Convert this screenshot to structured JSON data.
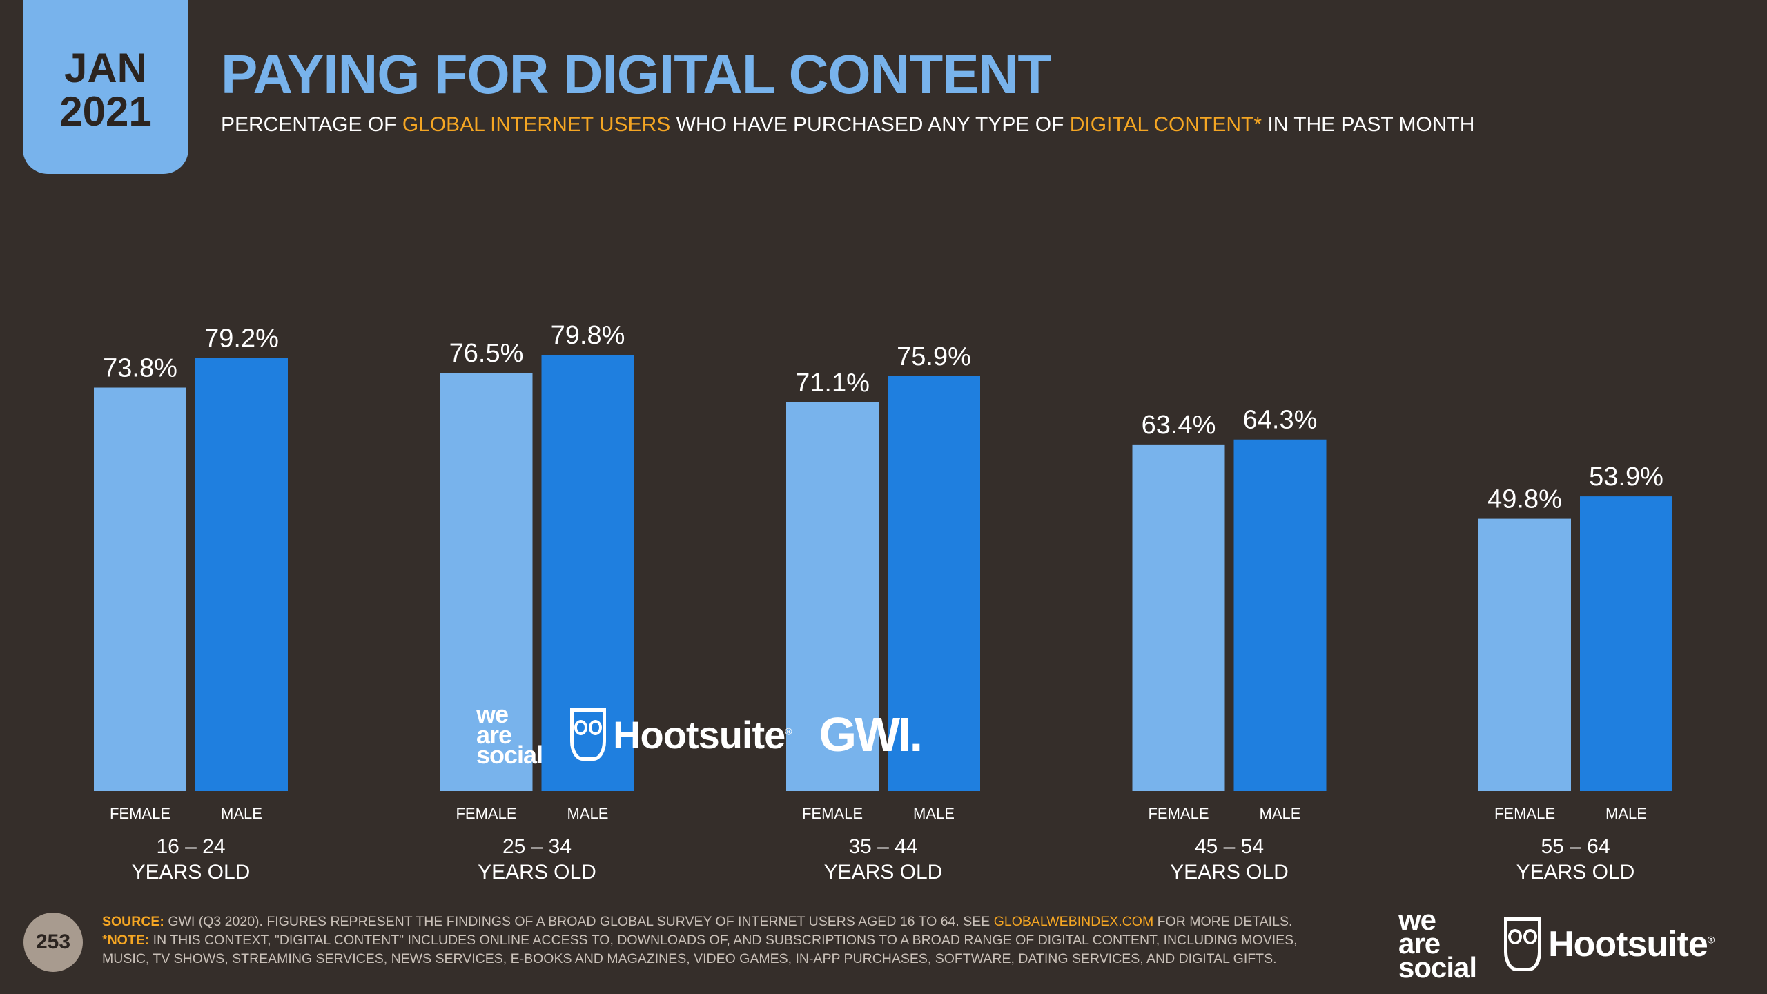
{
  "header": {
    "date_month": "JAN",
    "date_year": "2021",
    "title": "PAYING FOR DIGITAL CONTENT",
    "subtitle_parts": [
      "PERCENTAGE OF ",
      "GLOBAL INTERNET USERS",
      " WHO HAVE PURCHASED ANY TYPE OF ",
      "DIGITAL CONTENT*",
      " IN THE PAST MONTH"
    ]
  },
  "colors": {
    "background": "#352e2a",
    "female": "#78b3ec",
    "male": "#1f7fdf",
    "accent": "#f5a623",
    "title": "#78b3ec"
  },
  "chart_data": {
    "type": "bar",
    "categories": [
      "16 – 24\nYEARS OLD",
      "25 – 34\nYEARS OLD",
      "35 – 44\nYEARS OLD",
      "45 – 54\nYEARS OLD",
      "55 – 64\nYEARS OLD"
    ],
    "category_lines": [
      [
        "16 – 24",
        "YEARS OLD"
      ],
      [
        "25 – 34",
        "YEARS OLD"
      ],
      [
        "35 – 44",
        "YEARS OLD"
      ],
      [
        "45 – 54",
        "YEARS OLD"
      ],
      [
        "55 – 64",
        "YEARS OLD"
      ]
    ],
    "series": [
      {
        "name": "FEMALE",
        "values": [
          73.8,
          76.5,
          71.1,
          63.4,
          49.8
        ],
        "labels": [
          "73.8%",
          "76.5%",
          "71.1%",
          "63.4%",
          "49.8%"
        ]
      },
      {
        "name": "MALE",
        "values": [
          79.2,
          79.8,
          75.9,
          64.3,
          53.9
        ],
        "labels": [
          "79.2%",
          "79.8%",
          "75.9%",
          "64.3%",
          "53.9%"
        ]
      }
    ],
    "ylim": [
      0,
      100
    ],
    "grid": false,
    "legend": "none"
  },
  "logos": {
    "we_are_social": [
      "we",
      "are",
      "social"
    ],
    "hootsuite": "Hootsuite",
    "gwi": "GWI."
  },
  "footer": {
    "page_number": "253",
    "source_label": "SOURCE:",
    "source_text": " GWI (Q3 2020). FIGURES REPRESENT THE FINDINGS OF A BROAD GLOBAL SURVEY OF INTERNET USERS AGED 16 TO 64. SEE ",
    "source_link": "GLOBALWEBINDEX.COM",
    "source_tail": " FOR MORE DETAILS.",
    "note_label": "*NOTE:",
    "note_text": " IN THIS CONTEXT, \"DIGITAL CONTENT\" INCLUDES ONLINE ACCESS TO, DOWNLOADS OF, AND SUBSCRIPTIONS TO A BROAD RANGE OF DIGITAL CONTENT, INCLUDING MOVIES, MUSIC, TV SHOWS, STREAMING SERVICES, NEWS SERVICES, E-BOOKS AND MAGAZINES, VIDEO GAMES, IN-APP PURCHASES, SOFTWARE, DATING SERVICES, AND DIGITAL GIFTS."
  }
}
